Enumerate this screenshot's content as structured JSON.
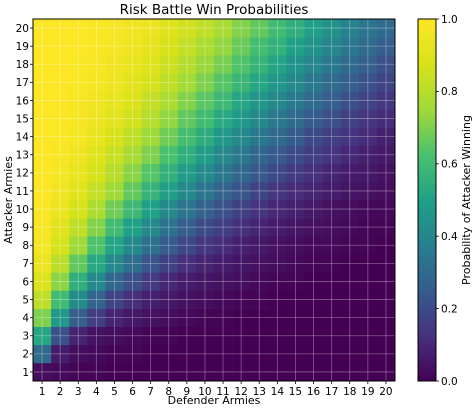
{
  "chart_data": {
    "type": "heatmap",
    "title": "Risk Battle Win Probabilities",
    "xlabel": "Defender Armies",
    "ylabel": "Attacker Armies",
    "colorbar_label": "Probability of Attacker Winning",
    "colormap": "viridis",
    "grid": true,
    "x": [
      1,
      2,
      3,
      4,
      5,
      6,
      7,
      8,
      9,
      10,
      11,
      12,
      13,
      14,
      15,
      16,
      17,
      18,
      19,
      20
    ],
    "y": [
      1,
      2,
      3,
      4,
      5,
      6,
      7,
      8,
      9,
      10,
      11,
      12,
      13,
      14,
      15,
      16,
      17,
      18,
      19,
      20
    ],
    "vmin": 0.0,
    "vmax": 1.0,
    "colorbar_ticks": [
      "0.0",
      "0.2",
      "0.4",
      "0.6",
      "0.8",
      "1.0"
    ],
    "z_model": "approximate cell values estimated from colors; rows = attacker 1..20, columns = defender 1..20",
    "z": [
      [
        0.03,
        0.02,
        0.01,
        0.01,
        0.0,
        0.0,
        0.0,
        0.0,
        0.0,
        0.0,
        0.0,
        0.0,
        0.0,
        0.0,
        0.0,
        0.0,
        0.0,
        0.0,
        0.0,
        0.0
      ],
      [
        0.3,
        0.07,
        0.03,
        0.02,
        0.01,
        0.01,
        0.0,
        0.0,
        0.0,
        0.0,
        0.0,
        0.0,
        0.0,
        0.0,
        0.0,
        0.0,
        0.0,
        0.0,
        0.0,
        0.0
      ],
      [
        0.52,
        0.22,
        0.09,
        0.04,
        0.03,
        0.02,
        0.01,
        0.01,
        0.0,
        0.0,
        0.0,
        0.0,
        0.0,
        0.0,
        0.0,
        0.0,
        0.0,
        0.0,
        0.0,
        0.0
      ],
      [
        0.7,
        0.47,
        0.26,
        0.16,
        0.09,
        0.06,
        0.04,
        0.03,
        0.02,
        0.01,
        0.01,
        0.0,
        0.0,
        0.0,
        0.0,
        0.0,
        0.0,
        0.0,
        0.0,
        0.0
      ],
      [
        0.82,
        0.6,
        0.42,
        0.28,
        0.18,
        0.12,
        0.08,
        0.06,
        0.04,
        0.03,
        0.02,
        0.01,
        0.01,
        0.0,
        0.0,
        0.0,
        0.0,
        0.0,
        0.0,
        0.0
      ],
      [
        0.89,
        0.72,
        0.55,
        0.41,
        0.29,
        0.21,
        0.15,
        0.1,
        0.07,
        0.05,
        0.04,
        0.03,
        0.02,
        0.01,
        0.01,
        0.0,
        0.0,
        0.0,
        0.0,
        0.0
      ],
      [
        0.94,
        0.81,
        0.66,
        0.53,
        0.41,
        0.31,
        0.23,
        0.17,
        0.12,
        0.09,
        0.07,
        0.05,
        0.04,
        0.03,
        0.02,
        0.01,
        0.01,
        0.0,
        0.0,
        0.0
      ],
      [
        0.97,
        0.87,
        0.75,
        0.63,
        0.51,
        0.41,
        0.32,
        0.25,
        0.19,
        0.14,
        0.11,
        0.08,
        0.06,
        0.04,
        0.03,
        0.02,
        0.02,
        0.01,
        0.01,
        0.0
      ],
      [
        0.98,
        0.91,
        0.82,
        0.71,
        0.6,
        0.5,
        0.41,
        0.33,
        0.26,
        0.2,
        0.16,
        0.12,
        0.09,
        0.07,
        0.05,
        0.04,
        0.03,
        0.02,
        0.01,
        0.01
      ],
      [
        0.99,
        0.94,
        0.87,
        0.78,
        0.68,
        0.59,
        0.5,
        0.41,
        0.34,
        0.27,
        0.22,
        0.17,
        0.13,
        0.1,
        0.08,
        0.06,
        0.04,
        0.03,
        0.02,
        0.02
      ],
      [
        1.0,
        0.96,
        0.91,
        0.83,
        0.75,
        0.66,
        0.57,
        0.49,
        0.41,
        0.34,
        0.28,
        0.23,
        0.18,
        0.14,
        0.11,
        0.09,
        0.07,
        0.05,
        0.04,
        0.03
      ],
      [
        1.0,
        0.97,
        0.93,
        0.87,
        0.8,
        0.72,
        0.64,
        0.56,
        0.48,
        0.41,
        0.35,
        0.29,
        0.24,
        0.19,
        0.15,
        0.12,
        0.09,
        0.07,
        0.06,
        0.04
      ],
      [
        1.0,
        0.98,
        0.95,
        0.9,
        0.84,
        0.77,
        0.7,
        0.62,
        0.55,
        0.48,
        0.41,
        0.35,
        0.29,
        0.24,
        0.2,
        0.16,
        0.13,
        0.1,
        0.08,
        0.06
      ],
      [
        1.0,
        0.99,
        0.97,
        0.93,
        0.88,
        0.82,
        0.75,
        0.68,
        0.61,
        0.54,
        0.47,
        0.41,
        0.35,
        0.3,
        0.25,
        0.2,
        0.16,
        0.13,
        0.11,
        0.08
      ],
      [
        1.0,
        0.99,
        0.98,
        0.95,
        0.91,
        0.86,
        0.8,
        0.73,
        0.66,
        0.6,
        0.53,
        0.47,
        0.41,
        0.35,
        0.3,
        0.25,
        0.21,
        0.17,
        0.14,
        0.11
      ],
      [
        1.0,
        1.0,
        0.98,
        0.96,
        0.93,
        0.89,
        0.83,
        0.78,
        0.71,
        0.65,
        0.59,
        0.52,
        0.46,
        0.41,
        0.35,
        0.3,
        0.26,
        0.21,
        0.18,
        0.14
      ],
      [
        1.0,
        1.0,
        0.99,
        0.97,
        0.95,
        0.91,
        0.87,
        0.82,
        0.76,
        0.7,
        0.64,
        0.58,
        0.52,
        0.46,
        0.41,
        0.35,
        0.3,
        0.26,
        0.22,
        0.18
      ],
      [
        1.0,
        1.0,
        0.99,
        0.98,
        0.96,
        0.93,
        0.9,
        0.85,
        0.8,
        0.74,
        0.69,
        0.63,
        0.57,
        0.51,
        0.45,
        0.4,
        0.35,
        0.3,
        0.26,
        0.22
      ],
      [
        1.0,
        1.0,
        1.0,
        0.99,
        0.97,
        0.95,
        0.92,
        0.88,
        0.83,
        0.78,
        0.73,
        0.67,
        0.61,
        0.56,
        0.5,
        0.45,
        0.4,
        0.35,
        0.3,
        0.26
      ],
      [
        1.0,
        1.0,
        1.0,
        0.99,
        0.98,
        0.96,
        0.94,
        0.9,
        0.86,
        0.82,
        0.77,
        0.71,
        0.66,
        0.6,
        0.55,
        0.49,
        0.44,
        0.39,
        0.34,
        0.3
      ]
    ]
  }
}
